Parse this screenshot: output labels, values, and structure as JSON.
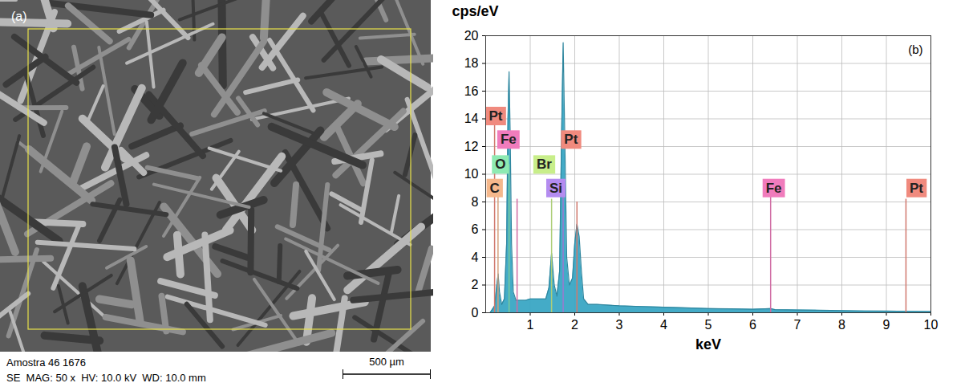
{
  "image_panel": {
    "panel_label": "(a)",
    "caption_lines": [
      "Amostra 46 1676",
      "SE  MAG: 50 x  HV: 10.0 kV  WD: 10.0 mm"
    ],
    "scale_bar": "500 µm"
  },
  "chart_data": {
    "type": "area",
    "panel_label": "(b)",
    "y_label": "cps/eV",
    "x_label": "keV",
    "x": [
      0.1,
      0.2,
      0.25,
      0.28,
      0.31,
      0.36,
      0.42,
      0.47,
      0.5,
      0.525,
      0.55,
      0.58,
      0.62,
      0.68,
      0.75,
      0.9,
      1.0,
      1.2,
      1.35,
      1.42,
      1.48,
      1.54,
      1.6,
      1.66,
      1.7,
      1.74,
      1.78,
      1.82,
      1.88,
      1.95,
      2.0,
      2.05,
      2.1,
      2.15,
      2.2,
      2.3,
      2.5,
      3.0,
      3.5,
      4.0,
      4.5,
      5.0,
      5.5,
      6.0,
      6.4,
      6.5,
      7.0,
      7.5,
      8.0,
      8.5,
      9.0,
      9.5,
      10.0
    ],
    "values": [
      0,
      0.5,
      2.0,
      2.8,
      1.5,
      0.6,
      1.0,
      5,
      14,
      17.4,
      13,
      5,
      1.5,
      0.9,
      0.9,
      0.9,
      1.0,
      1.0,
      1.0,
      1.8,
      4.3,
      2.0,
      1.2,
      3,
      12,
      19.5,
      12,
      4,
      2,
      2.5,
      5,
      6.4,
      5.5,
      3,
      1,
      0.6,
      0.6,
      0.5,
      0.45,
      0.4,
      0.35,
      0.3,
      0.28,
      0.25,
      0.3,
      0.22,
      0.2,
      0.18,
      0.15,
      0.13,
      0.12,
      0.1,
      0.08
    ],
    "color": "#3aa6c4",
    "xlim": [
      0,
      10
    ],
    "xticks": [
      1,
      2,
      3,
      4,
      5,
      6,
      7,
      8,
      9,
      10
    ],
    "ylim": [
      0,
      20
    ],
    "yticks": [
      0,
      2,
      4,
      6,
      8,
      10,
      12,
      14,
      16,
      18,
      20
    ],
    "grid": true,
    "markers": [
      {
        "element": "Pt",
        "energy": 0.2,
        "height": 14.2,
        "label_x": 0.0,
        "label_y": 14.2,
        "color": "#f08a7e"
      },
      {
        "element": "Fe",
        "energy": 0.705,
        "height": 8.2,
        "label_x": 0.26,
        "label_y": 12.5,
        "color": "#f07cbc"
      },
      {
        "element": "O",
        "energy": 0.525,
        "height": 10.7,
        "label_x": 0.14,
        "label_y": 10.7,
        "color": "#8eeab2"
      },
      {
        "element": "C",
        "energy": 0.277,
        "height": 9.0,
        "label_x": 0.02,
        "label_y": 9.0,
        "color": "#f5b88c"
      },
      {
        "element": "Br",
        "energy": 1.48,
        "height": 8.2,
        "label_x": 1.07,
        "label_y": 10.7,
        "color": "#c8ee8a"
      },
      {
        "element": "Si",
        "energy": 1.74,
        "height": 8.8,
        "label_x": 1.36,
        "label_y": 9.0,
        "color": "#b48cf0"
      },
      {
        "element": "Pt",
        "energy": 2.05,
        "height": 8.0,
        "label_x": 1.69,
        "label_y": 12.5,
        "color": "#f08a7e"
      },
      {
        "element": "Fe",
        "energy": 6.4,
        "height": 8.8,
        "label_x": 6.22,
        "label_y": 9.0,
        "color": "#f07cbc"
      },
      {
        "element": "Pt",
        "energy": 9.44,
        "height": 8.2,
        "label_x": 9.45,
        "label_y": 9.0,
        "color": "#f08a7e"
      }
    ]
  }
}
